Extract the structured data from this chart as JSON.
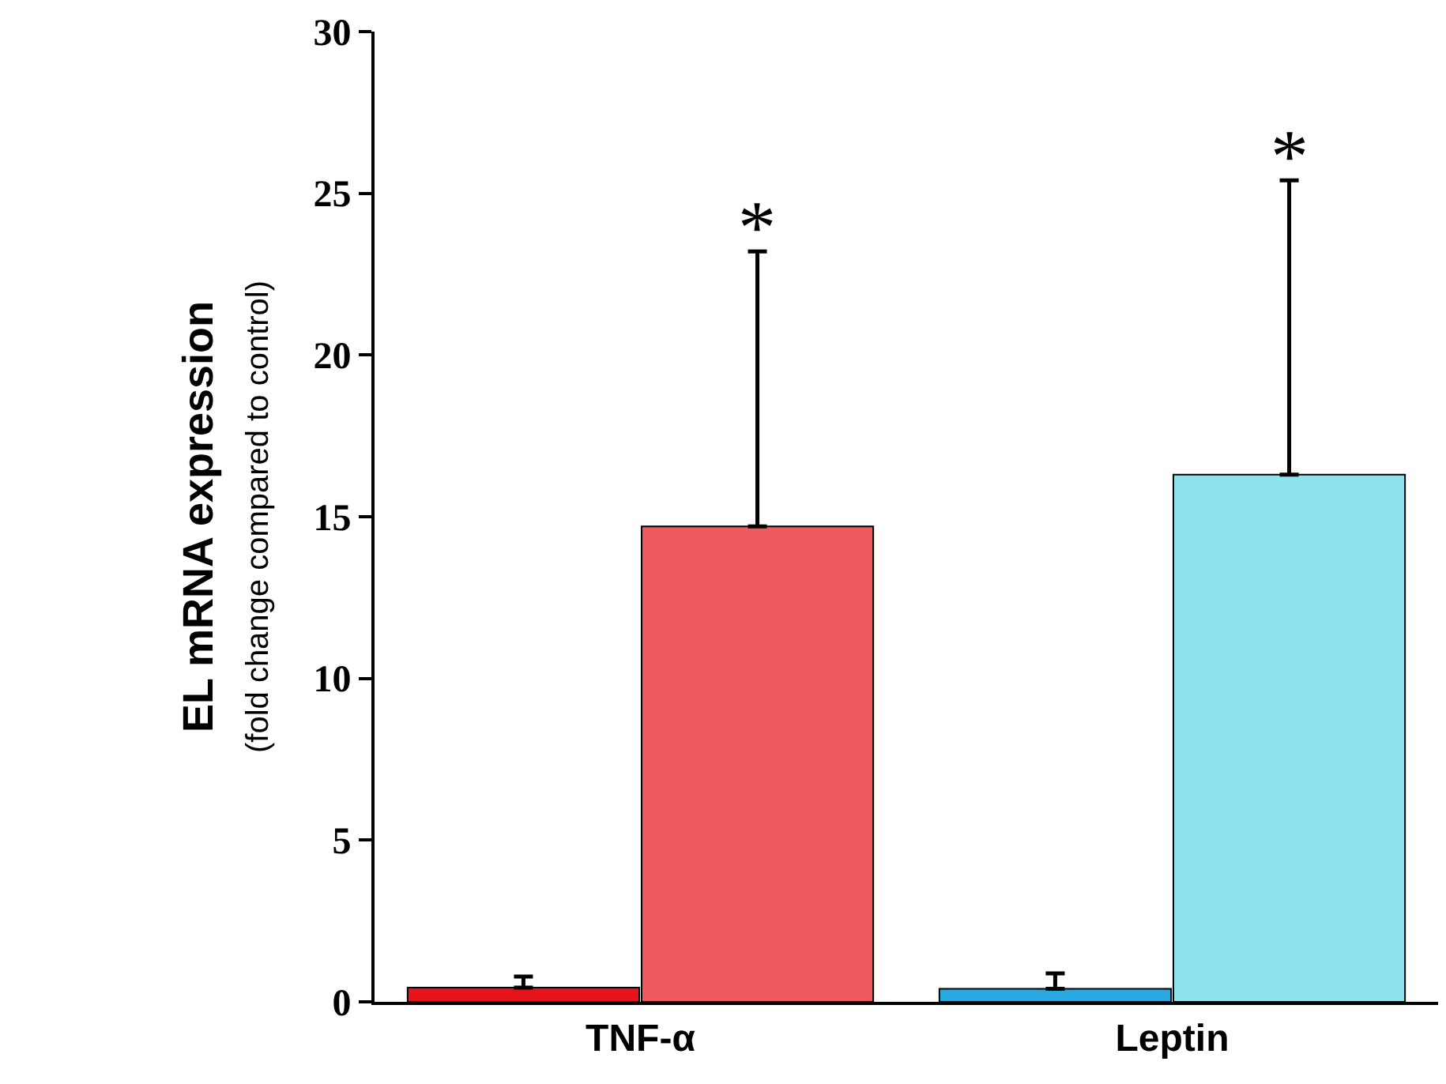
{
  "chart_data": {
    "type": "bar",
    "ylabel": "EL mRNA expression\n(fold change compared to control)",
    "categories": [
      "TNF-α",
      "Leptin"
    ],
    "series": [
      {
        "colors": [
          "#e8141b",
          "#29a9e0"
        ],
        "values": [
          0.44,
          0.4
        ],
        "errors": [
          [
            0.44,
            0.78
          ],
          [
            0.4,
            0.88
          ]
        ]
      },
      {
        "colors": [
          "#ee5a5e",
          "#8fe3ee"
        ],
        "values": [
          14.7,
          16.3
        ],
        "errors": [
          [
            14.7,
            23.2
          ],
          [
            16.3,
            25.4
          ]
        ]
      }
    ],
    "ylim": [
      0,
      30
    ],
    "yticks": [
      0,
      5,
      10,
      15,
      20,
      25,
      30
    ],
    "annotations": [
      "*",
      "*"
    ]
  }
}
